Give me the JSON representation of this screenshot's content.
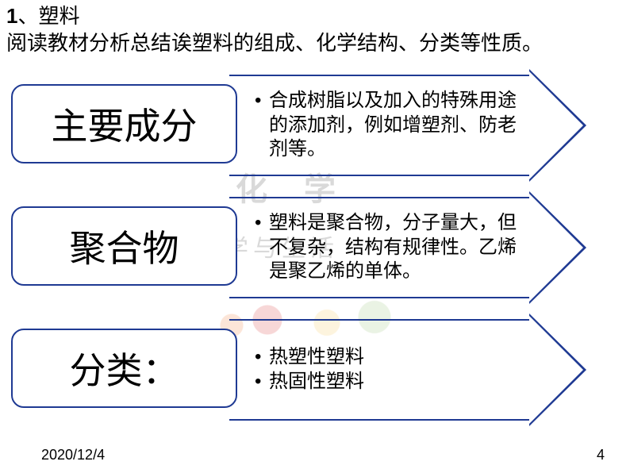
{
  "header": {
    "number": "1",
    "sep": "、",
    "topic": "塑料",
    "subtitle": "阅读教材分析总结诶塑料的组成、化学结构、分类等性质。"
  },
  "watermark": {
    "line1": "化 学",
    "line2": "化学与生活"
  },
  "rows": [
    {
      "label": "主要成分",
      "desc_lines": [
        "合成树脂以及加入的特殊用途的添加剂，例如增塑剂、防老剂等。"
      ],
      "border_color": "#1f3a93"
    },
    {
      "label": "聚合物",
      "desc_lines": [
        "塑料是聚合物，分子量大，但不复杂，结构有规律性。乙烯是聚乙烯的单体。"
      ],
      "border_color": "#1f3a93"
    },
    {
      "label": "分类：",
      "desc_lines": [
        "热塑性塑料",
        "热固性塑料"
      ],
      "border_color": "#1f3a93"
    }
  ],
  "footer": {
    "date": "2020/12/4",
    "page": "4"
  },
  "style": {
    "label_fontsize": 46,
    "desc_fontsize": 24,
    "header_fontsize": 26
  }
}
